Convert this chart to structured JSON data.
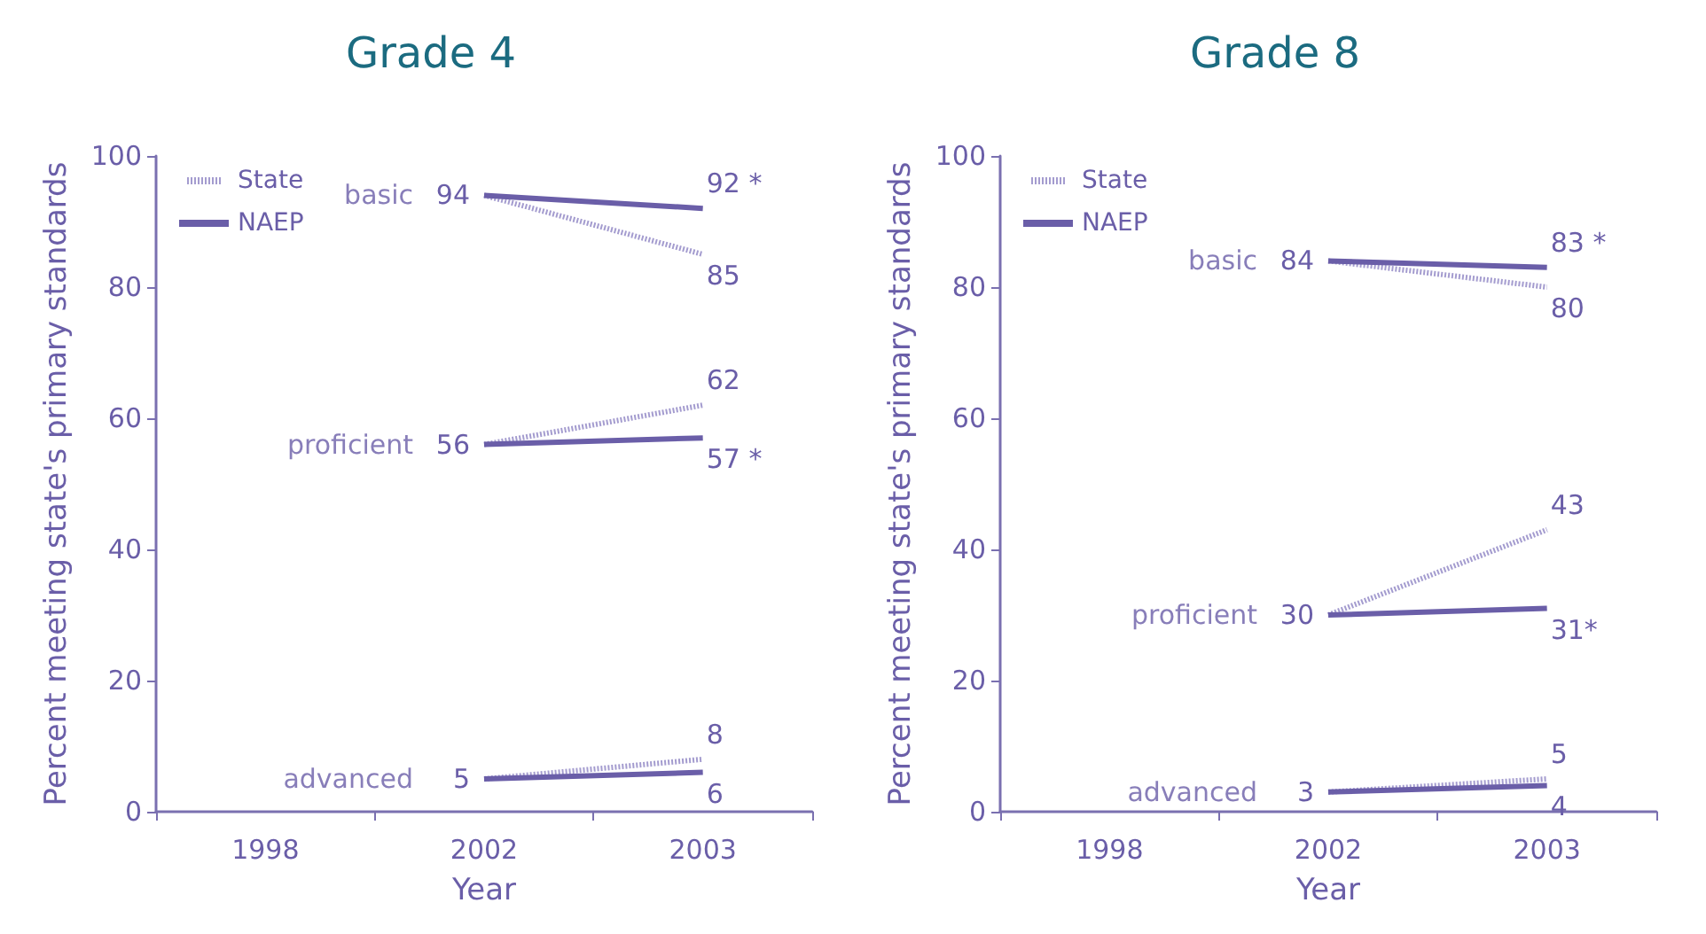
{
  "chart_data": [
    {
      "type": "line",
      "title": "Grade 4",
      "xlabel": "Year",
      "ylabel": "Percent meeting state's primary standards",
      "categories": [
        "1998",
        "2002",
        "2003"
      ],
      "ylim": [
        0,
        100
      ],
      "yticks": [
        0,
        20,
        40,
        60,
        80,
        100
      ],
      "grid": false,
      "legend": "top left",
      "marker": "none",
      "series": [
        {
          "name": "State",
          "color": "#a49ccf",
          "line_style": "dotted",
          "values": [
            null,
            94,
            85
          ],
          "value_labels": [
            null,
            null,
            "85"
          ]
        },
        {
          "name": "NAEP",
          "color": "#6a5ea8",
          "line_style": "solid",
          "values": [
            null,
            94,
            92
          ],
          "value_labels": [
            null,
            "94",
            "92 *"
          ]
        },
        {
          "color": "#a49ccf",
          "line_style": "dotted",
          "values": [
            null,
            56,
            62
          ],
          "value_labels": [
            null,
            null,
            "62"
          ]
        },
        {
          "color": "#6a5ea8",
          "line_style": "solid",
          "values": [
            null,
            56,
            57
          ],
          "value_labels": [
            null,
            "56",
            "57 *"
          ]
        },
        {
          "color": "#a49ccf",
          "line_style": "dotted",
          "values": [
            null,
            5,
            8
          ],
          "value_labels": [
            null,
            null,
            "8"
          ]
        },
        {
          "color": "#6a5ea8",
          "line_style": "solid",
          "values": [
            null,
            5,
            6
          ],
          "value_labels": [
            null,
            "5",
            "6"
          ]
        }
      ],
      "annotations": [
        "basic",
        "proficient",
        "advanced"
      ]
    },
    {
      "type": "line",
      "title": "Grade 8",
      "xlabel": "Year",
      "ylabel": "Percent meeting state's primary standards",
      "categories": [
        "1998",
        "2002",
        "2003"
      ],
      "ylim": [
        0,
        100
      ],
      "yticks": [
        0,
        20,
        40,
        60,
        80,
        100
      ],
      "grid": false,
      "legend": "top left",
      "marker": "none",
      "series": [
        {
          "name": "State",
          "color": "#a49ccf",
          "line_style": "dotted",
          "values": [
            null,
            84,
            80
          ],
          "value_labels": [
            null,
            null,
            "80"
          ]
        },
        {
          "name": "NAEP",
          "color": "#6a5ea8",
          "line_style": "solid",
          "values": [
            null,
            84,
            83
          ],
          "value_labels": [
            null,
            "84",
            "83 *"
          ]
        },
        {
          "color": "#a49ccf",
          "line_style": "dotted",
          "values": [
            null,
            30,
            43
          ],
          "value_labels": [
            null,
            null,
            "43"
          ]
        },
        {
          "color": "#6a5ea8",
          "line_style": "solid",
          "values": [
            null,
            30,
            31
          ],
          "value_labels": [
            null,
            "30",
            "31*"
          ]
        },
        {
          "color": "#a49ccf",
          "line_style": "dotted",
          "values": [
            null,
            3,
            5
          ],
          "value_labels": [
            null,
            null,
            "5"
          ]
        },
        {
          "color": "#6a5ea8",
          "line_style": "solid",
          "values": [
            null,
            3,
            4
          ],
          "value_labels": [
            null,
            "3",
            "4"
          ]
        }
      ],
      "annotations": [
        "basic",
        "proficient",
        "advanced"
      ]
    }
  ]
}
